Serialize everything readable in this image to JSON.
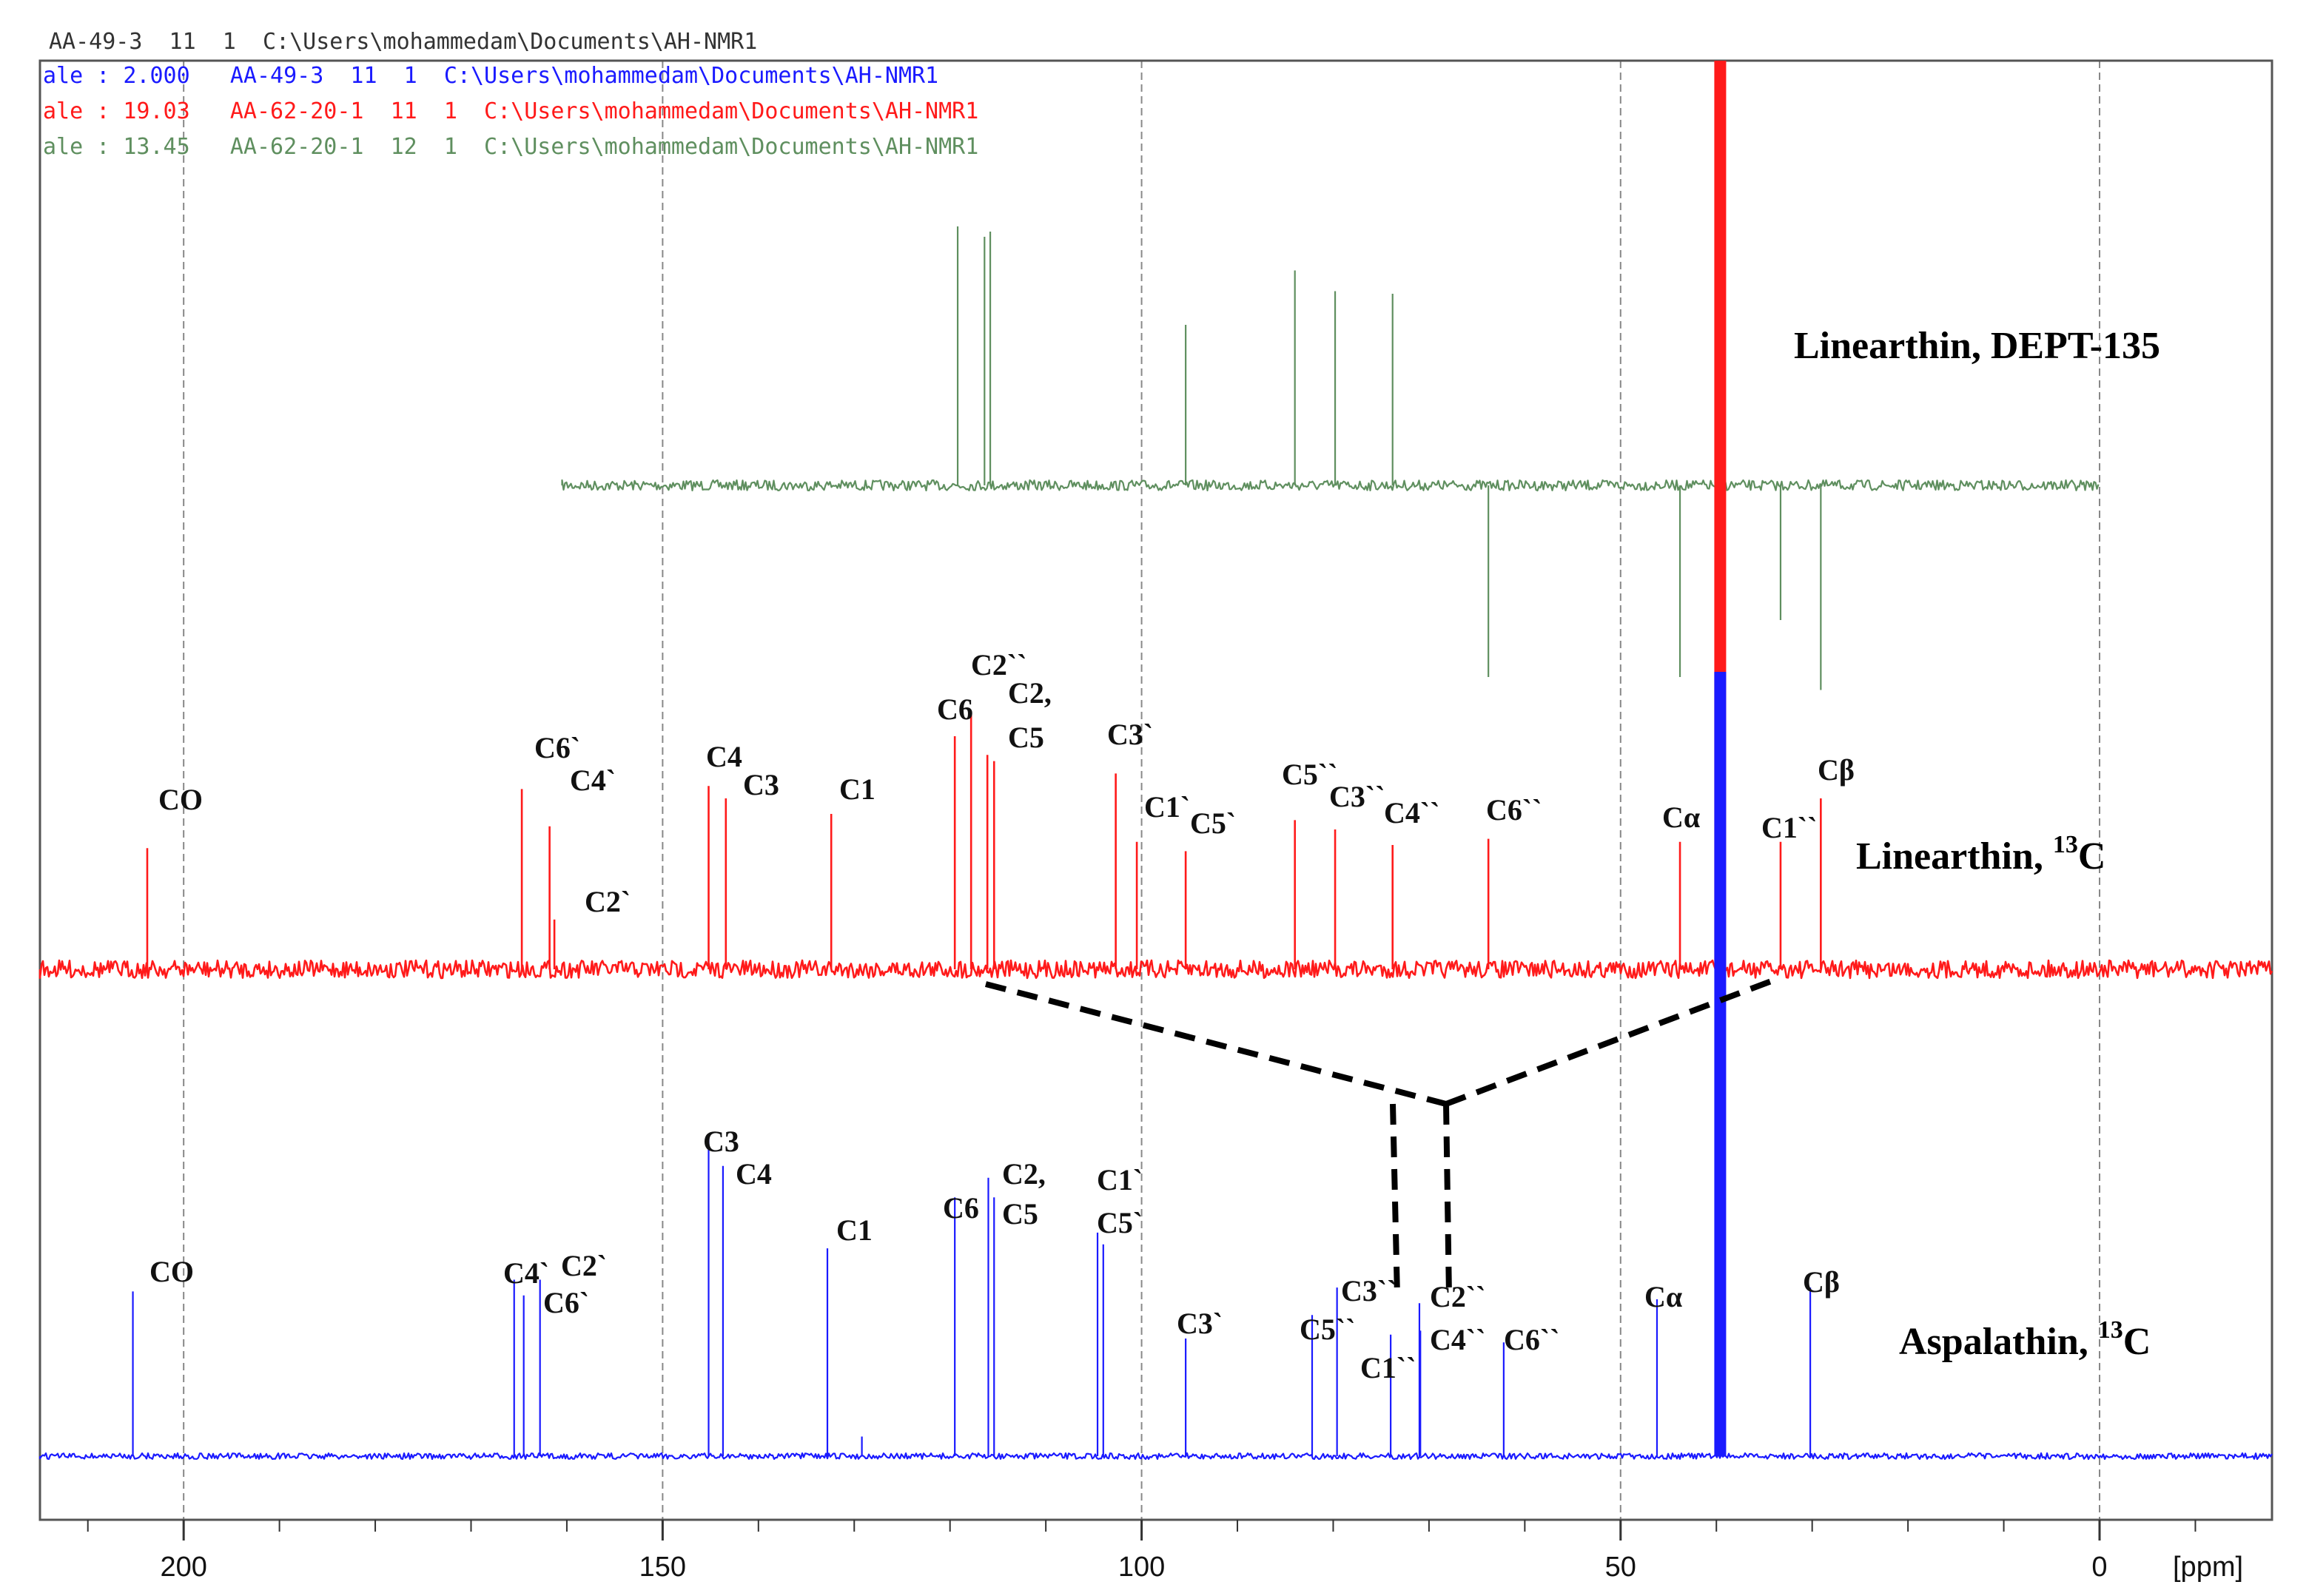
{
  "header": {
    "line1": "AA-49-3  11  1  C:\\Users\\mohammedam\\Documents\\AH-NMR1",
    "line2": "ale : 2.000   AA-49-3  11  1  C:\\Users\\mohammedam\\Documents\\AH-NMR1",
    "line3": "ale : 19.03   AA-62-20-1  11  1  C:\\Users\\mohammedam\\Documents\\AH-NMR1",
    "line4": "ale : 13.45   AA-62-20-1  12  1  C:\\Users\\mohammedam\\Documents\\AH-NMR1"
  },
  "colors": {
    "dept": "#5f8f5f",
    "linearthin": "#ff1a1a",
    "aspalathin": "#1a1aff",
    "header1": "#333333",
    "grid": "#888888",
    "dashed": "#000000"
  },
  "chart_data": {
    "type": "line",
    "xlabel": "[ppm]",
    "xlim": [
      215,
      -18
    ],
    "x_ticks": [
      200,
      150,
      100,
      50,
      0
    ],
    "x_tick_labels": [
      "200",
      "150",
      "100",
      "50",
      "0"
    ],
    "grid": true,
    "series": [
      {
        "name": "Linearthin, DEPT-135",
        "title_line1": "Linearthin, DEPT-135",
        "title_line2": "",
        "title_sup": "",
        "noise_range_ppm": [
          160.5,
          0
        ],
        "peaks": [
          {
            "ppm": 119.2,
            "intensity": 1.0
          },
          {
            "ppm": 116.4,
            "intensity": 0.96
          },
          {
            "ppm": 115.8,
            "intensity": 0.98
          },
          {
            "ppm": 95.4,
            "intensity": 0.62
          },
          {
            "ppm": 84.0,
            "intensity": 0.83
          },
          {
            "ppm": 79.8,
            "intensity": 0.75
          },
          {
            "ppm": 73.8,
            "intensity": 0.74
          },
          {
            "ppm": 63.8,
            "intensity": -0.74
          },
          {
            "ppm": 43.8,
            "intensity": -0.74
          },
          {
            "ppm": 33.3,
            "intensity": -0.52
          },
          {
            "ppm": 29.1,
            "intensity": -0.79
          }
        ]
      },
      {
        "name": "Linearthin, 13C",
        "title_line1": "Linearthin, ",
        "title_sup": "13",
        "title_tail": "C",
        "peaks": [
          {
            "ppm": 203.8,
            "intensity": 0.39,
            "label": "CO"
          },
          {
            "ppm": 164.7,
            "intensity": 0.58,
            "label": "C6`"
          },
          {
            "ppm": 161.8,
            "intensity": 0.46,
            "label": "C4`"
          },
          {
            "ppm": 161.3,
            "intensity": 0.16,
            "label": "C2`"
          },
          {
            "ppm": 145.2,
            "intensity": 0.59,
            "label": "C4"
          },
          {
            "ppm": 143.4,
            "intensity": 0.55,
            "label": "C3"
          },
          {
            "ppm": 132.4,
            "intensity": 0.5,
            "label": "C1"
          },
          {
            "ppm": 119.5,
            "intensity": 0.75,
            "label": "C6"
          },
          {
            "ppm": 117.8,
            "intensity": 0.83,
            "label": "C2``"
          },
          {
            "ppm": 116.1,
            "intensity": 0.69,
            "label": "C2,"
          },
          {
            "ppm": 115.4,
            "intensity": 0.67,
            "label": "C5"
          },
          {
            "ppm": 102.7,
            "intensity": 0.63,
            "label": "C3`"
          },
          {
            "ppm": 100.5,
            "intensity": 0.41,
            "label": "C1`"
          },
          {
            "ppm": 95.4,
            "intensity": 0.38,
            "label": "C5`"
          },
          {
            "ppm": 84.0,
            "intensity": 0.48,
            "label": "C5``"
          },
          {
            "ppm": 79.8,
            "intensity": 0.45,
            "label": "C3``"
          },
          {
            "ppm": 73.8,
            "intensity": 0.4,
            "label": "C4``"
          },
          {
            "ppm": 63.8,
            "intensity": 0.42,
            "label": "C6``"
          },
          {
            "ppm": 43.8,
            "intensity": 0.41,
            "label": "Cα"
          },
          {
            "ppm": 39.6,
            "intensity": 3.2,
            "label": ""
          },
          {
            "ppm": 33.3,
            "intensity": 0.41,
            "label": "C1``"
          },
          {
            "ppm": 29.1,
            "intensity": 0.55,
            "label": "Cβ"
          }
        ]
      },
      {
        "name": "Aspalathin, 13C",
        "title_line1": "Aspalathin, ",
        "title_sup": "13",
        "title_tail": "C",
        "peaks": [
          {
            "ppm": 205.3,
            "intensity": 0.42,
            "label": "CO"
          },
          {
            "ppm": 165.5,
            "intensity": 0.45,
            "label": "C4`"
          },
          {
            "ppm": 164.5,
            "intensity": 0.41,
            "label": "C6`"
          },
          {
            "ppm": 162.8,
            "intensity": 0.45,
            "label": "C2`"
          },
          {
            "ppm": 145.2,
            "intensity": 0.82,
            "label": "C3"
          },
          {
            "ppm": 143.7,
            "intensity": 0.74,
            "label": "C4"
          },
          {
            "ppm": 132.8,
            "intensity": 0.53,
            "label": "C1"
          },
          {
            "ppm": 129.2,
            "intensity": 0.05,
            "label": ""
          },
          {
            "ppm": 119.5,
            "intensity": 0.66,
            "label": "C6"
          },
          {
            "ppm": 116.0,
            "intensity": 0.71,
            "label": "C2,"
          },
          {
            "ppm": 115.4,
            "intensity": 0.66,
            "label": "C5"
          },
          {
            "ppm": 104.6,
            "intensity": 0.57,
            "label": "C1`"
          },
          {
            "ppm": 104.0,
            "intensity": 0.54,
            "label": "C5`"
          },
          {
            "ppm": 95.4,
            "intensity": 0.3,
            "label": "C3`"
          },
          {
            "ppm": 82.2,
            "intensity": 0.36,
            "label": "C5``"
          },
          {
            "ppm": 79.6,
            "intensity": 0.43,
            "label": "C3``"
          },
          {
            "ppm": 74.0,
            "intensity": 0.31,
            "label": "C1``"
          },
          {
            "ppm": 71.0,
            "intensity": 0.39,
            "label": "C2``"
          },
          {
            "ppm": 70.9,
            "intensity": 0.32,
            "label": "C4``"
          },
          {
            "ppm": 62.2,
            "intensity": 0.29,
            "label": "C6``"
          },
          {
            "ppm": 46.2,
            "intensity": 0.4,
            "label": "Cα"
          },
          {
            "ppm": 39.6,
            "intensity": 2.0,
            "label": ""
          },
          {
            "ppm": 30.2,
            "intensity": 0.43,
            "label": "Cβ"
          }
        ]
      }
    ]
  }
}
